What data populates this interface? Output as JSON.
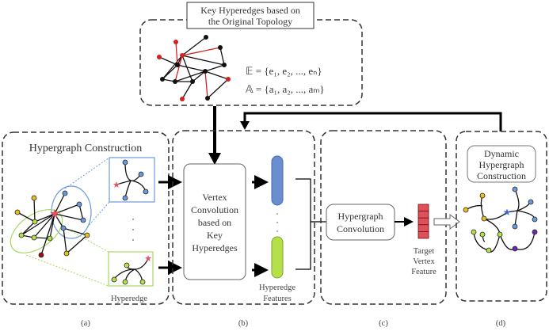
{
  "top": {
    "title_line1": "Key Hyperedges based on",
    "title_line2": "the Original Topology",
    "formula_e": "𝔼 = {e₁, e₂, ..., eₙ}",
    "formula_a": "𝔸 = {a₁, a₂, ..., aₘ}"
  },
  "panel_a": {
    "title": "Hypergraph Construction",
    "hyperedge_label": "Hyperedge",
    "caption": "(a)"
  },
  "panel_b": {
    "box_lines": [
      "Vertex",
      "Convolution",
      "based on",
      "Key",
      "Hyperedges"
    ],
    "features_line1": "Hyperedge",
    "features_line2": "Features",
    "caption": "(b)"
  },
  "panel_c": {
    "box_line1": "Hypergraph",
    "box_line2": "Convolution",
    "target_lines": [
      "Target",
      "Vertex",
      "Feature"
    ],
    "caption": "(c)"
  },
  "panel_d": {
    "title_lines": [
      "Dynamic",
      "Hypergraph",
      "Construction"
    ],
    "caption": "(d)"
  },
  "colors": {
    "blue": "#6a8fd0",
    "green": "#b5e04a",
    "red": "#e0505a",
    "yellow": "#e5c020",
    "purple": "#6a2ab0"
  }
}
